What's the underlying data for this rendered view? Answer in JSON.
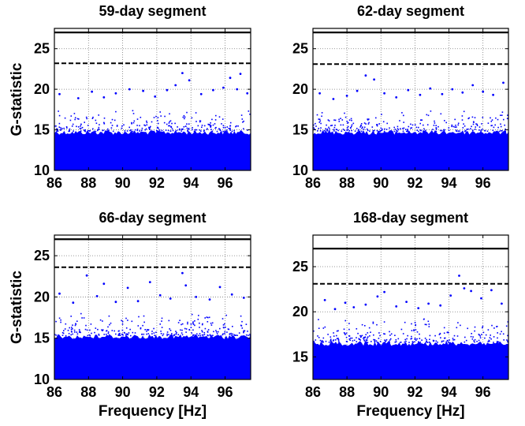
{
  "chart_data": [
    {
      "type": "scatter",
      "title": "59-day segment",
      "xlabel": "",
      "ylabel": "G-statistic",
      "xlim": [
        86,
        97.5
      ],
      "ylim": [
        10,
        27.5
      ],
      "xticks": [
        "86",
        "88",
        "90",
        "92",
        "94",
        "96"
      ],
      "yticks": [
        "10",
        "15",
        "20",
        "25"
      ],
      "grid": true,
      "lines": [
        {
          "style": "solid",
          "y": 27.0
        },
        {
          "style": "dashed",
          "y": 23.2
        }
      ],
      "series": [
        {
          "color": "#0000ff",
          "dense_band_max": 14.8,
          "points": [
            [
              86.3,
              19.4
            ],
            [
              87.4,
              18.9
            ],
            [
              88.2,
              19.7
            ],
            [
              88.9,
              19.0
            ],
            [
              89.6,
              19.5
            ],
            [
              90.4,
              20.0
            ],
            [
              91.2,
              19.8
            ],
            [
              91.9,
              19.1
            ],
            [
              92.6,
              19.9
            ],
            [
              93.1,
              20.5
            ],
            [
              93.5,
              22.0
            ],
            [
              93.9,
              21.1
            ],
            [
              94.6,
              19.4
            ],
            [
              95.3,
              19.9
            ],
            [
              95.9,
              20.2
            ],
            [
              96.3,
              21.4
            ],
            [
              96.7,
              20.0
            ],
            [
              96.9,
              21.9
            ],
            [
              97.3,
              19.5
            ]
          ]
        }
      ]
    },
    {
      "type": "scatter",
      "title": "62-day segment",
      "xlabel": "",
      "ylabel": "",
      "xlim": [
        86,
        97.5
      ],
      "ylim": [
        10,
        27.5
      ],
      "xticks": [
        "86",
        "88",
        "90",
        "92",
        "94",
        "96"
      ],
      "yticks": [
        "10",
        "15",
        "20",
        "25"
      ],
      "grid": true,
      "lines": [
        {
          "style": "solid",
          "y": 27.0
        },
        {
          "style": "dashed",
          "y": 23.1
        }
      ],
      "series": [
        {
          "color": "#0000ff",
          "dense_band_max": 14.8,
          "points": [
            [
              86.4,
              19.5
            ],
            [
              87.2,
              18.8
            ],
            [
              88.0,
              19.2
            ],
            [
              88.6,
              19.8
            ],
            [
              89.1,
              21.7
            ],
            [
              89.6,
              21.2
            ],
            [
              90.2,
              19.5
            ],
            [
              90.9,
              19.0
            ],
            [
              91.6,
              19.9
            ],
            [
              92.3,
              19.3
            ],
            [
              92.9,
              20.1
            ],
            [
              93.6,
              19.4
            ],
            [
              94.2,
              20.0
            ],
            [
              94.8,
              19.6
            ],
            [
              95.4,
              20.5
            ],
            [
              96.0,
              19.7
            ],
            [
              96.6,
              19.3
            ],
            [
              97.2,
              20.8
            ]
          ]
        }
      ]
    },
    {
      "type": "scatter",
      "title": "66-day segment",
      "xlabel": "Frequency [Hz]",
      "ylabel": "G-statistic",
      "xlim": [
        86,
        97.5
      ],
      "ylim": [
        10,
        27.5
      ],
      "xticks": [
        "86",
        "88",
        "90",
        "92",
        "94",
        "96"
      ],
      "yticks": [
        "10",
        "15",
        "20",
        "25"
      ],
      "grid": true,
      "lines": [
        {
          "style": "solid",
          "y": 27.0
        },
        {
          "style": "dashed",
          "y": 23.6
        }
      ],
      "series": [
        {
          "color": "#0000ff",
          "dense_band_max": 15.3,
          "points": [
            [
              86.3,
              20.4
            ],
            [
              87.1,
              19.3
            ],
            [
              87.9,
              22.6
            ],
            [
              88.5,
              20.1
            ],
            [
              88.9,
              21.6
            ],
            [
              89.6,
              19.4
            ],
            [
              90.3,
              21.1
            ],
            [
              90.9,
              19.5
            ],
            [
              91.6,
              21.8
            ],
            [
              92.2,
              20.2
            ],
            [
              92.8,
              19.8
            ],
            [
              93.5,
              22.9
            ],
            [
              93.7,
              21.4
            ],
            [
              94.3,
              20.0
            ],
            [
              95.1,
              19.7
            ],
            [
              95.7,
              21.2
            ],
            [
              96.4,
              20.3
            ],
            [
              97.1,
              19.9
            ]
          ]
        }
      ]
    },
    {
      "type": "scatter",
      "title": "168-day segment",
      "xlabel": "Frequency [Hz]",
      "ylabel": "",
      "xlim": [
        86,
        97.5
      ],
      "ylim": [
        12.5,
        28.5
      ],
      "xticks": [
        "86",
        "88",
        "90",
        "92",
        "94",
        "96"
      ],
      "yticks": [
        "15",
        "20",
        "25"
      ],
      "grid": true,
      "lines": [
        {
          "style": "solid",
          "y": 27.0
        },
        {
          "style": "dashed",
          "y": 23.1
        }
      ],
      "series": [
        {
          "color": "#0000ff",
          "dense_band_max": 16.6,
          "points": [
            [
              86.7,
              21.3
            ],
            [
              87.3,
              20.3
            ],
            [
              87.9,
              21.0
            ],
            [
              88.4,
              20.5
            ],
            [
              89.1,
              20.8
            ],
            [
              89.8,
              21.7
            ],
            [
              90.2,
              22.2
            ],
            [
              90.9,
              20.6
            ],
            [
              91.5,
              21.1
            ],
            [
              92.2,
              20.4
            ],
            [
              92.8,
              20.9
            ],
            [
              93.5,
              20.7
            ],
            [
              94.1,
              21.8
            ],
            [
              94.6,
              24.0
            ],
            [
              94.9,
              22.6
            ],
            [
              95.3,
              22.3
            ],
            [
              95.9,
              21.5
            ],
            [
              96.5,
              22.4
            ],
            [
              97.1,
              20.9
            ]
          ]
        }
      ]
    }
  ]
}
